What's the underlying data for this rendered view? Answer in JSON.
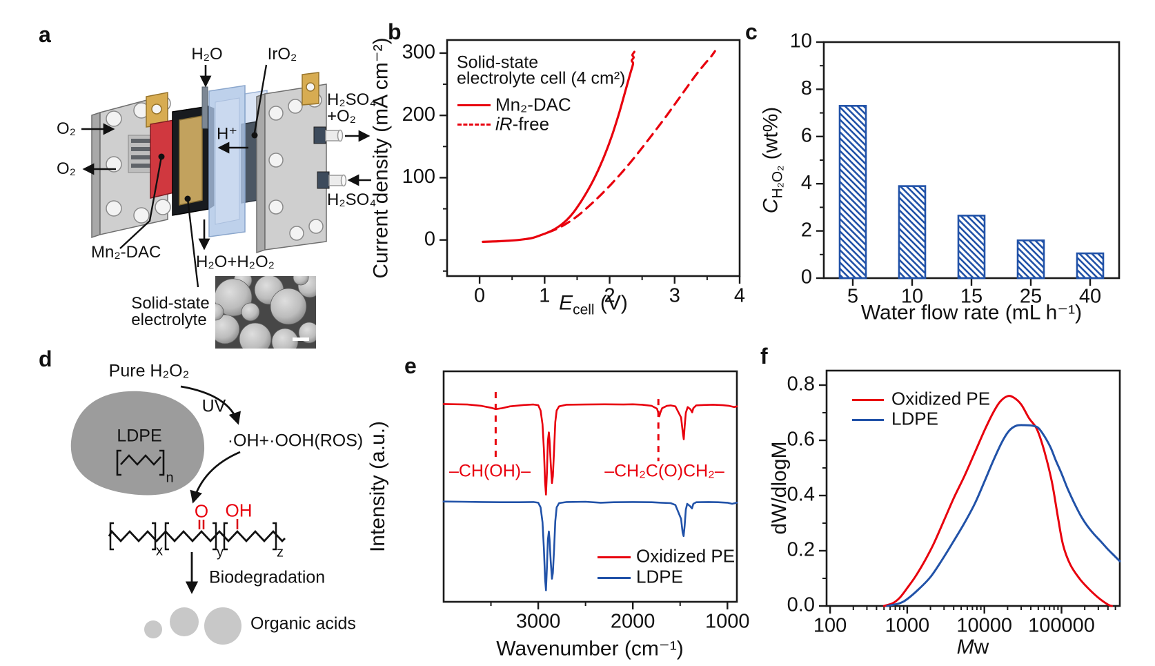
{
  "panels": {
    "a": "a",
    "b": "b",
    "c": "c",
    "d": "d",
    "e": "e",
    "f": "f"
  },
  "colors": {
    "red": "#e8000d",
    "blue": "#2152a8",
    "black": "#111111"
  },
  "panel_a": {
    "labels": {
      "h2o": "H₂O",
      "iro2": "IrO₂",
      "o2_in": "O₂",
      "o2_out": "O₂",
      "h_plus": "H⁺",
      "h2so4_out_1": "H₂SO₄",
      "h2so4_out_2": "+O₂",
      "h2so4_in": "H₂SO₄",
      "mn2_dac": "Mn₂-DAC",
      "solid_state_1": "Solid-state",
      "solid_state_2": "electrolyte",
      "h2o_h2o2": "H₂O+H₂O₂"
    }
  },
  "panel_d": {
    "labels": {
      "pure_h2o2": "Pure H₂O₂",
      "uv": "UV",
      "ros": "·OH+·OOH(ROS)",
      "ldpe": "LDPE",
      "n": "n",
      "o": "O",
      "oh": "OH",
      "x": "x",
      "y": "y",
      "z": "z",
      "biodegradation": "Biodegradation",
      "organic_acids": "Organic acids"
    }
  },
  "chart_data": [
    {
      "id": "b",
      "type": "line",
      "legend_header": [
        "Solid-state",
        "electrolyte cell (4 cm²)"
      ],
      "xlabel": {
        "italic": "E",
        "sub": "cell",
        "rest": " (V)"
      },
      "ylabel": "Current density (mA cm⁻²)",
      "xlim": [
        -0.5,
        4.0
      ],
      "ylim": [
        -58,
        321
      ],
      "xticks": [
        0,
        1,
        2,
        3,
        4
      ],
      "yticks": [
        0,
        100,
        200,
        300
      ],
      "legend_position": "upper-left",
      "grid": false,
      "series": [
        {
          "name": "Mn₂-DAC",
          "style": "solid",
          "color": "#e8000d",
          "points": [
            [
              0.05,
              -3
            ],
            [
              0.2,
              -2.5
            ],
            [
              0.4,
              -1.5
            ],
            [
              0.6,
              0
            ],
            [
              0.8,
              3
            ],
            [
              0.95,
              8
            ],
            [
              1.05,
              12
            ],
            [
              1.15,
              17
            ],
            [
              1.25,
              24
            ],
            [
              1.35,
              33
            ],
            [
              1.45,
              45
            ],
            [
              1.55,
              60
            ],
            [
              1.65,
              77
            ],
            [
              1.75,
              96
            ],
            [
              1.85,
              118
            ],
            [
              1.95,
              143
            ],
            [
              2.05,
              172
            ],
            [
              2.15,
              205
            ],
            [
              2.25,
              242
            ],
            [
              2.32,
              268
            ],
            [
              2.36,
              283
            ],
            [
              2.34,
              288
            ],
            [
              2.37,
              293
            ],
            [
              2.35,
              297
            ],
            [
              2.38,
              302
            ]
          ]
        },
        {
          "name": "iR-free",
          "name_italic": "iR",
          "name_rest": "-free",
          "style": "dashed",
          "color": "#e8000d",
          "points": [
            [
              1.05,
              12
            ],
            [
              1.15,
              16
            ],
            [
              1.3,
              24
            ],
            [
              1.5,
              38
            ],
            [
              1.7,
              56
            ],
            [
              1.9,
              76
            ],
            [
              2.1,
              98
            ],
            [
              2.3,
              122
            ],
            [
              2.5,
              148
            ],
            [
              2.7,
              175
            ],
            [
              2.9,
              203
            ],
            [
              3.1,
              232
            ],
            [
              3.3,
              261
            ],
            [
              3.45,
              281
            ],
            [
              3.55,
              293
            ],
            [
              3.62,
              303
            ]
          ]
        }
      ]
    },
    {
      "id": "c",
      "type": "bar",
      "xlabel": "Water flow rate (mL h⁻¹)",
      "ylabel": {
        "italic": "C",
        "sub": "H₂O₂",
        "rest": " (wt%)"
      },
      "categories": [
        "5",
        "10",
        "15",
        "25",
        "40"
      ],
      "values": [
        7.3,
        3.9,
        2.65,
        1.6,
        1.05
      ],
      "ylim": [
        0,
        10
      ],
      "yticks": [
        0,
        2,
        4,
        6,
        8,
        10
      ],
      "bar_color": "#2152a8",
      "hatch": "diagonal",
      "grid": false
    },
    {
      "id": "e",
      "type": "line",
      "xlabel": "Wavenumber (cm⁻¹)",
      "ylabel": "Intensity (a.u.)",
      "x_reversed": true,
      "xlim": [
        4000,
        900
      ],
      "xticks": [
        3000,
        2000,
        1000
      ],
      "yticks": [],
      "legend_position": "lower-right",
      "grid": false,
      "annotations": [
        {
          "text": "–CH(OH)–",
          "wavenumber": 3450,
          "v_top": 0.91,
          "v_bottom": 0.615
        },
        {
          "text": "–CH₂C(O)CH₂–",
          "wavenumber": 1730,
          "v_top": 0.88,
          "v_bottom": 0.61
        }
      ],
      "series": [
        {
          "name": "Oxidized PE",
          "color": "#e8000d",
          "points": [
            [
              4000,
              0.858
            ],
            [
              3750,
              0.856
            ],
            [
              3600,
              0.85
            ],
            [
              3500,
              0.842
            ],
            [
              3450,
              0.836
            ],
            [
              3380,
              0.84
            ],
            [
              3300,
              0.848
            ],
            [
              3150,
              0.854
            ],
            [
              3050,
              0.856
            ],
            [
              3000,
              0.853
            ],
            [
              2975,
              0.83
            ],
            [
              2955,
              0.77
            ],
            [
              2940,
              0.66
            ],
            [
              2928,
              0.52
            ],
            [
              2918,
              0.465
            ],
            [
              2908,
              0.56
            ],
            [
              2898,
              0.7
            ],
            [
              2888,
              0.735
            ],
            [
              2880,
              0.7
            ],
            [
              2868,
              0.6
            ],
            [
              2855,
              0.515
            ],
            [
              2845,
              0.545
            ],
            [
              2832,
              0.66
            ],
            [
              2820,
              0.78
            ],
            [
              2805,
              0.83
            ],
            [
              2780,
              0.848
            ],
            [
              2700,
              0.855
            ],
            [
              2500,
              0.856
            ],
            [
              2300,
              0.857
            ],
            [
              2100,
              0.856
            ],
            [
              2000,
              0.857
            ],
            [
              1900,
              0.855
            ],
            [
              1800,
              0.85
            ],
            [
              1745,
              0.838
            ],
            [
              1720,
              0.805
            ],
            [
              1710,
              0.82
            ],
            [
              1690,
              0.84
            ],
            [
              1640,
              0.85
            ],
            [
              1600,
              0.852
            ],
            [
              1550,
              0.848
            ],
            [
              1490,
              0.8
            ],
            [
              1472,
              0.735
            ],
            [
              1462,
              0.705
            ],
            [
              1452,
              0.76
            ],
            [
              1440,
              0.82
            ],
            [
              1420,
              0.845
            ],
            [
              1390,
              0.835
            ],
            [
              1373,
              0.822
            ],
            [
              1360,
              0.84
            ],
            [
              1330,
              0.852
            ],
            [
              1250,
              0.854
            ],
            [
              1150,
              0.855
            ],
            [
              1050,
              0.853
            ],
            [
              980,
              0.85
            ],
            [
              930,
              0.845
            ],
            [
              900,
              0.848
            ]
          ]
        },
        {
          "name": "LDPE",
          "color": "#2152a8",
          "points": [
            [
              4000,
              0.435
            ],
            [
              3800,
              0.434
            ],
            [
              3600,
              0.433
            ],
            [
              3400,
              0.432
            ],
            [
              3200,
              0.432
            ],
            [
              3050,
              0.433
            ],
            [
              3000,
              0.43
            ],
            [
              2975,
              0.41
            ],
            [
              2955,
              0.345
            ],
            [
              2940,
              0.23
            ],
            [
              2928,
              0.1
            ],
            [
              2918,
              0.05
            ],
            [
              2908,
              0.15
            ],
            [
              2898,
              0.27
            ],
            [
              2888,
              0.305
            ],
            [
              2880,
              0.27
            ],
            [
              2868,
              0.175
            ],
            [
              2855,
              0.1
            ],
            [
              2845,
              0.125
            ],
            [
              2832,
              0.23
            ],
            [
              2820,
              0.35
            ],
            [
              2805,
              0.41
            ],
            [
              2780,
              0.428
            ],
            [
              2700,
              0.433
            ],
            [
              2500,
              0.434
            ],
            [
              2340,
              0.43
            ],
            [
              2200,
              0.432
            ],
            [
              2000,
              0.433
            ],
            [
              1800,
              0.432
            ],
            [
              1700,
              0.43
            ],
            [
              1600,
              0.428
            ],
            [
              1550,
              0.42
            ],
            [
              1490,
              0.36
            ],
            [
              1473,
              0.3
            ],
            [
              1463,
              0.285
            ],
            [
              1452,
              0.33
            ],
            [
              1440,
              0.4
            ],
            [
              1425,
              0.425
            ],
            [
              1395,
              0.415
            ],
            [
              1375,
              0.405
            ],
            [
              1360,
              0.425
            ],
            [
              1330,
              0.432
            ],
            [
              1200,
              0.433
            ],
            [
              1100,
              0.432
            ],
            [
              1000,
              0.43
            ],
            [
              950,
              0.425
            ],
            [
              920,
              0.428
            ],
            [
              900,
              0.43
            ]
          ]
        }
      ]
    },
    {
      "id": "f",
      "type": "line",
      "xscale": "log",
      "xlabel": {
        "italic": "M",
        "rest": "w"
      },
      "ylabel": "dW/dlogM",
      "xlim": [
        90,
        570000
      ],
      "xticks": [
        100,
        1000,
        10000,
        100000
      ],
      "ylim": [
        0,
        0.8525
      ],
      "yticks": [
        0.0,
        0.2,
        0.4,
        0.6,
        0.8
      ],
      "legend_position": "upper-left",
      "grid": false,
      "series": [
        {
          "name": "Oxidized PE",
          "color": "#e8000d",
          "points": [
            [
              500,
              0
            ],
            [
              650,
              0.01
            ],
            [
              800,
              0.03
            ],
            [
              1000,
              0.065
            ],
            [
              1300,
              0.11
            ],
            [
              1700,
              0.165
            ],
            [
              2200,
              0.225
            ],
            [
              3000,
              0.31
            ],
            [
              4000,
              0.39
            ],
            [
              5500,
              0.47
            ],
            [
              7500,
              0.555
            ],
            [
              10000,
              0.635
            ],
            [
              13000,
              0.7
            ],
            [
              16000,
              0.74
            ],
            [
              20000,
              0.76
            ],
            [
              24000,
              0.755
            ],
            [
              30000,
              0.73
            ],
            [
              38000,
              0.68
            ],
            [
              48000,
              0.64
            ],
            [
              60000,
              0.56
            ],
            [
              75000,
              0.45
            ],
            [
              90000,
              0.32
            ],
            [
              105000,
              0.22
            ],
            [
              130000,
              0.15
            ],
            [
              170000,
              0.1
            ],
            [
              220000,
              0.065
            ],
            [
              300000,
              0.03
            ],
            [
              400000,
              0.005
            ],
            [
              450000,
              0
            ]
          ]
        },
        {
          "name": "LDPE",
          "color": "#2152a8",
          "points": [
            [
              550,
              0
            ],
            [
              800,
              0.01
            ],
            [
              1000,
              0.025
            ],
            [
              1400,
              0.06
            ],
            [
              2000,
              0.105
            ],
            [
              2800,
              0.165
            ],
            [
              4000,
              0.235
            ],
            [
              5500,
              0.3
            ],
            [
              7500,
              0.37
            ],
            [
              10000,
              0.45
            ],
            [
              13000,
              0.525
            ],
            [
              17000,
              0.595
            ],
            [
              21000,
              0.635
            ],
            [
              26000,
              0.653
            ],
            [
              33000,
              0.655
            ],
            [
              42000,
              0.653
            ],
            [
              50000,
              0.645
            ],
            [
              60000,
              0.615
            ],
            [
              72000,
              0.575
            ],
            [
              85000,
              0.525
            ],
            [
              100000,
              0.48
            ],
            [
              120000,
              0.425
            ],
            [
              145000,
              0.375
            ],
            [
              175000,
              0.33
            ],
            [
              210000,
              0.295
            ],
            [
              260000,
              0.262
            ],
            [
              320000,
              0.235
            ],
            [
              400000,
              0.205
            ],
            [
              500000,
              0.178
            ],
            [
              570000,
              0.162
            ]
          ]
        }
      ]
    }
  ]
}
